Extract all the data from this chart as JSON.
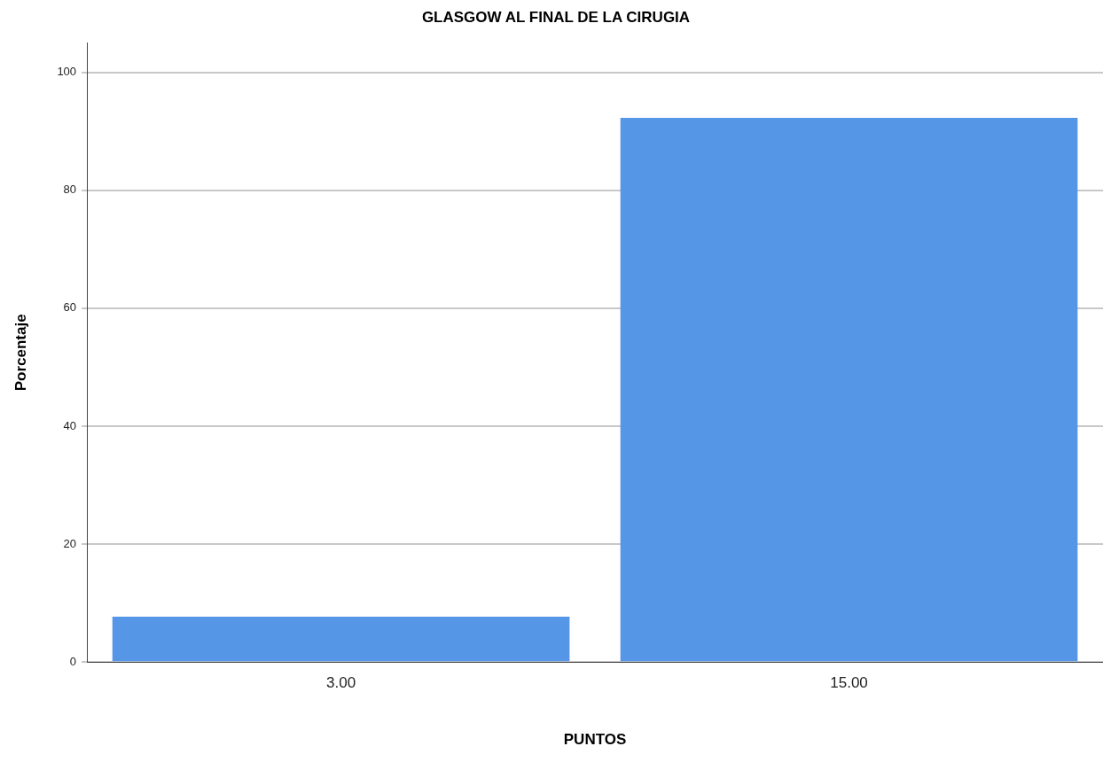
{
  "chart_data": {
    "type": "bar",
    "title": "GLASGOW AL FINAL DE LA CIRUGIA",
    "xlabel": "PUNTOS",
    "ylabel": "Porcentaje",
    "categories": [
      "3.00",
      "15.00"
    ],
    "values": [
      7.7,
      92.3
    ],
    "color": "#5596e6",
    "ylim": [
      0,
      105
    ],
    "yticks": [
      0,
      20,
      40,
      60,
      80,
      100
    ],
    "grid": "y",
    "legend": false
  }
}
